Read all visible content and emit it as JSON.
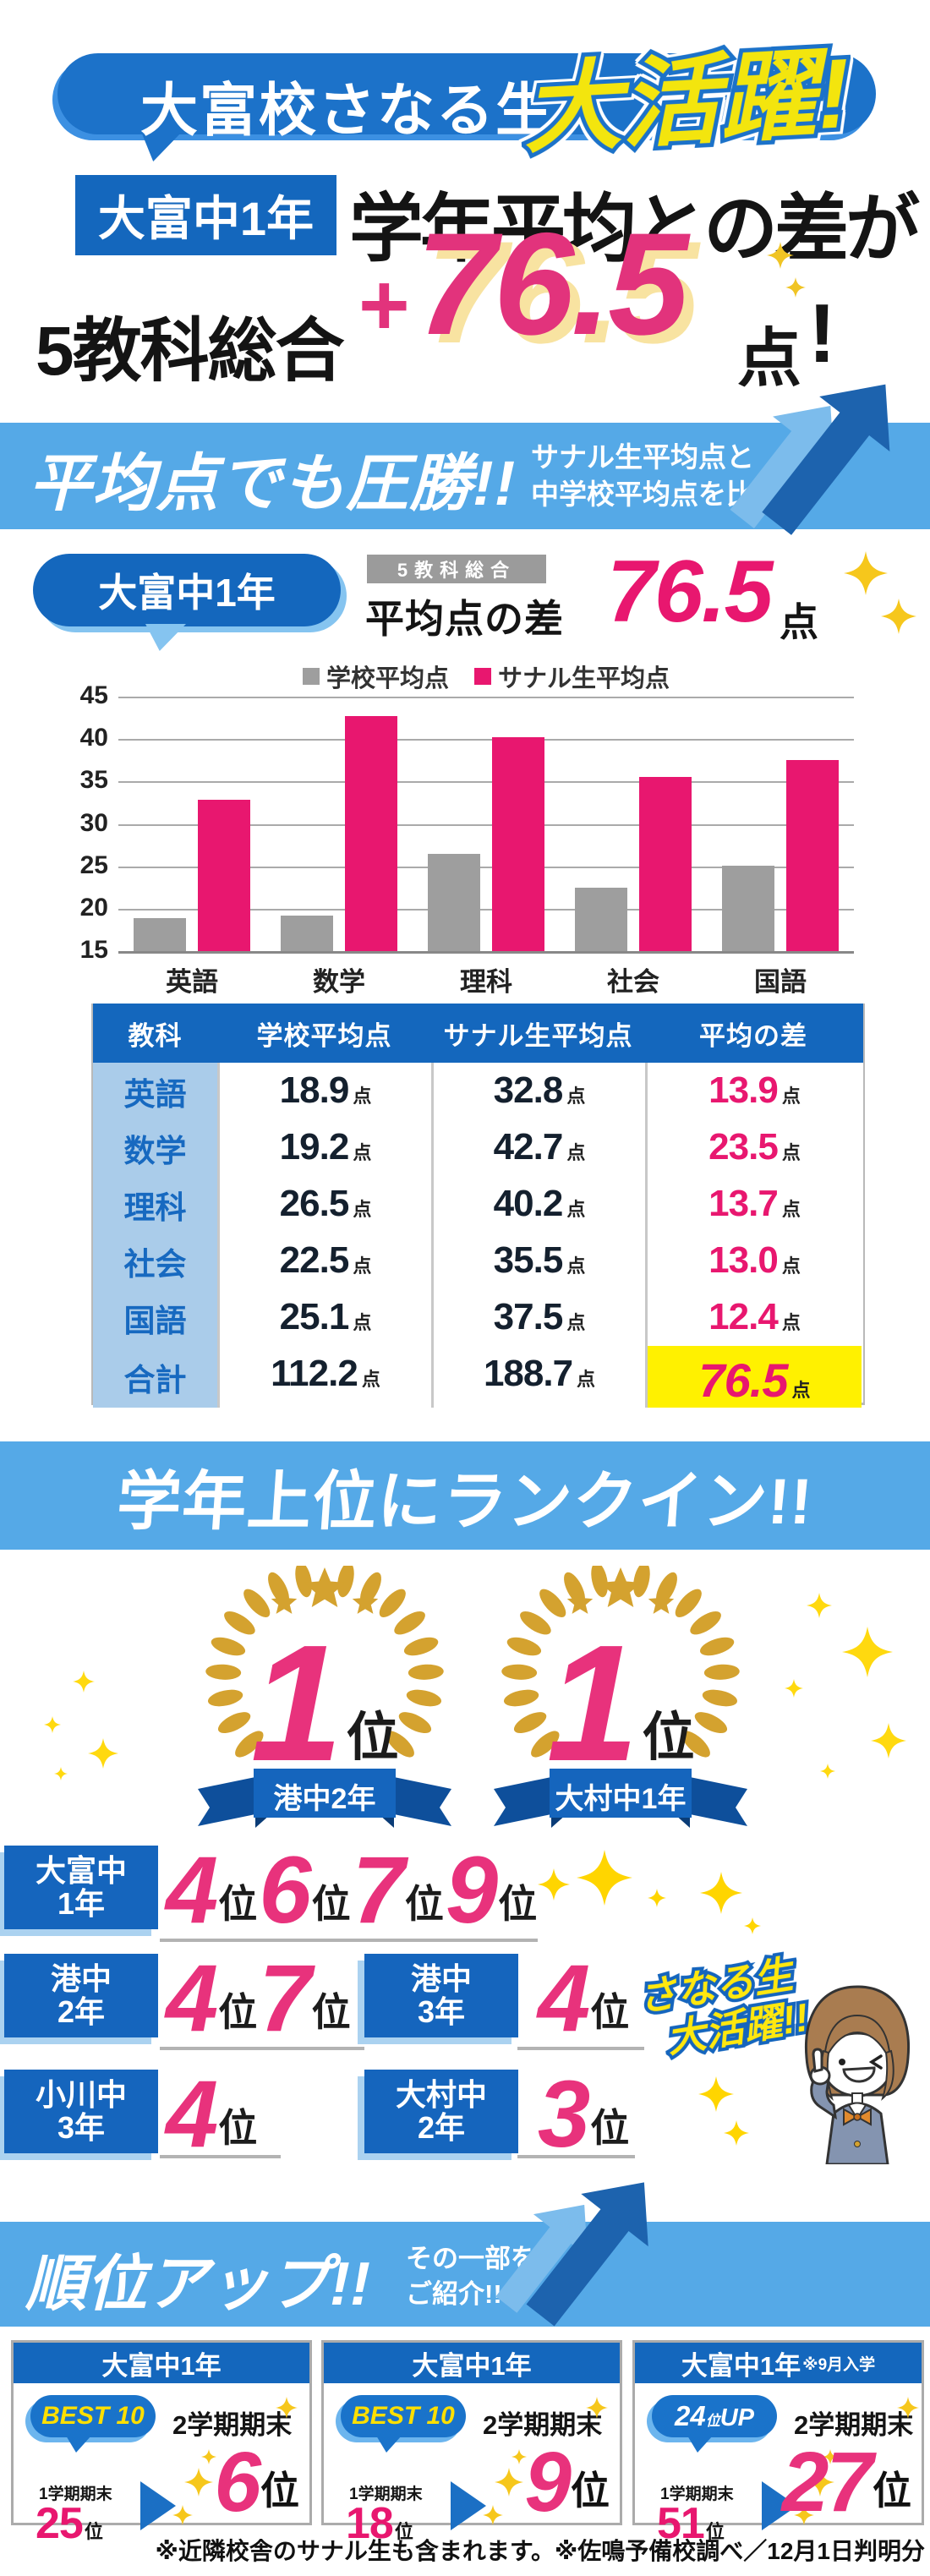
{
  "colors": {
    "blue": "#1467bd",
    "bubble_blue": "#1c72c9",
    "light_blue": "#55a9e7",
    "pale_blue": "#aaccea",
    "pink": "#e8176f",
    "headline_pink": "#e2337c",
    "gray_bar": "#9e9e9e",
    "gold": "#d4a22f",
    "sparkle": "#ffd313",
    "yellow": "#f3e50e",
    "highlight": "#fff100",
    "best_yellow": "#ffdf00",
    "arrow_blue": "#1d63ae",
    "ribbon_blue": "#1565bd"
  },
  "hero": {
    "bubble": "大富校さなる生",
    "burst": "大活躍!",
    "badge": "大富中1年",
    "headline": "学年平均との差が",
    "sub_prefix": "5教科総合",
    "plus": "+",
    "value": "76.5",
    "unit": "点",
    "excl": "!"
  },
  "avg_section": {
    "banner_title": "平均点でも圧勝!!",
    "banner_sub1": "サナル生平均点と",
    "banner_sub2": "中学校平均点を比較",
    "badge": "大富中1年",
    "tag": "5教科総合",
    "label": "平均点の差",
    "value": "76.5",
    "unit": "点"
  },
  "chart_data": {
    "type": "bar",
    "categories": [
      "英語",
      "数学",
      "理科",
      "社会",
      "国語"
    ],
    "series": [
      {
        "name": "学校平均点",
        "color": "#9e9e9e",
        "values": [
          18.9,
          19.2,
          26.5,
          22.5,
          25.1
        ]
      },
      {
        "name": "サナル生平均点",
        "color": "#e8176f",
        "values": [
          32.8,
          42.7,
          40.2,
          35.5,
          37.5
        ]
      }
    ],
    "ylim": [
      15,
      45
    ],
    "yticks": [
      45,
      40,
      35,
      30,
      25,
      20,
      15
    ],
    "grid": true,
    "legend_position": "top"
  },
  "table": {
    "headers": [
      "教科",
      "学校平均点",
      "サナル生平均点",
      "平均の差"
    ],
    "unit": "点",
    "rows": [
      {
        "subject": "英語",
        "school": "18.9",
        "sanaru": "32.8",
        "diff": "13.9",
        "highlight": false
      },
      {
        "subject": "数学",
        "school": "19.2",
        "sanaru": "42.7",
        "diff": "23.5",
        "highlight": false
      },
      {
        "subject": "理科",
        "school": "26.5",
        "sanaru": "40.2",
        "diff": "13.7",
        "highlight": false
      },
      {
        "subject": "社会",
        "school": "22.5",
        "sanaru": "35.5",
        "diff": "13.0",
        "highlight": false
      },
      {
        "subject": "国語",
        "school": "25.1",
        "sanaru": "37.5",
        "diff": "12.4",
        "highlight": false
      },
      {
        "subject": "合計",
        "school": "112.2",
        "sanaru": "188.7",
        "diff": "76.5",
        "highlight": true
      }
    ]
  },
  "rank_section": {
    "banner_title": "学年上位にランクイン!!",
    "wreaths": [
      {
        "rank": "1",
        "unit": "位",
        "ribbon": "港中2年"
      },
      {
        "rank": "1",
        "unit": "位",
        "ribbon": "大村中1年"
      }
    ],
    "rank_unit": "位",
    "rows": [
      {
        "groups": [
          {
            "school": "大富中",
            "grade": "1年",
            "ranks": [
              "4",
              "6",
              "7",
              "9"
            ]
          }
        ]
      },
      {
        "groups": [
          {
            "school": "港中",
            "grade": "2年",
            "ranks": [
              "4",
              "7"
            ]
          },
          {
            "school": "港中",
            "grade": "3年",
            "ranks": [
              "4"
            ]
          }
        ]
      },
      {
        "groups": [
          {
            "school": "小川中",
            "grade": "3年",
            "ranks": [
              "4"
            ]
          },
          {
            "school": "大村中",
            "grade": "2年",
            "ranks": [
              "3"
            ]
          }
        ]
      }
    ],
    "callout1": "さなる生",
    "callout2": "大活躍!!"
  },
  "up_section": {
    "banner_title": "順位アップ!!",
    "banner_sub1": "その一部を",
    "banner_sub2": "ご紹介!!",
    "cards": [
      {
        "school": "大富中1年",
        "note": "",
        "badge_type": "best",
        "badge_text": "BEST 10",
        "term": "2学期期末",
        "before_label": "1学期期末",
        "before": "25",
        "after": "6",
        "unit": "位"
      },
      {
        "school": "大富中1年",
        "note": "",
        "badge_type": "best",
        "badge_text": "BEST 10",
        "term": "2学期期末",
        "before_label": "1学期期末",
        "before": "18",
        "after": "9",
        "unit": "位"
      },
      {
        "school": "大富中1年",
        "note": "※9月入学",
        "badge_type": "up",
        "badge_num": "24",
        "badge_unit": "位",
        "badge_suffix": "UP",
        "term": "2学期期末",
        "before_label": "1学期期末",
        "before": "51",
        "after": "27",
        "unit": "位"
      }
    ]
  },
  "footer": {
    "note": "※近隣校舎のサナル生も含まれます。※佐鳴予備校調べ／12月1日判明分"
  }
}
